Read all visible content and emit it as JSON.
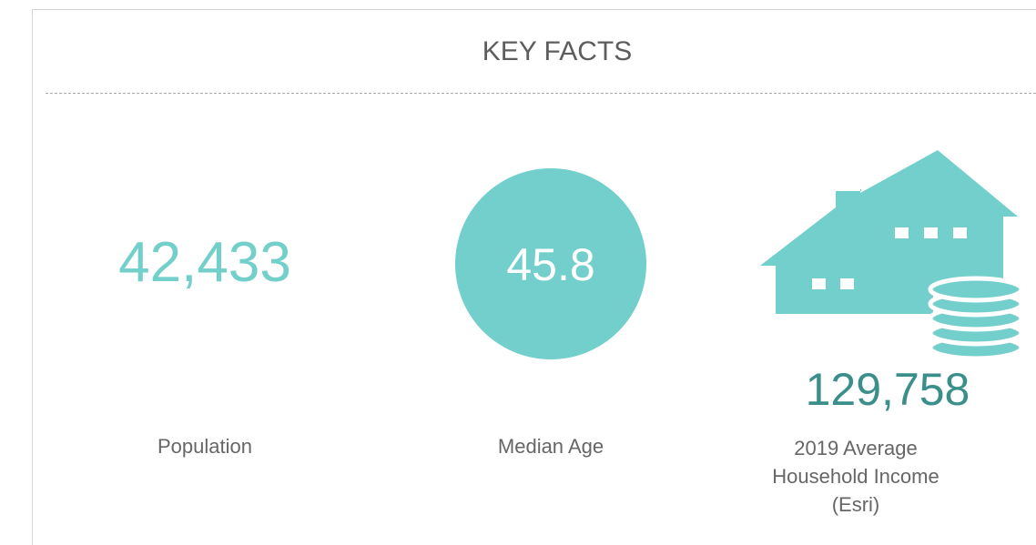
{
  "title": "KEY FACTS",
  "facts": [
    {
      "value": "42,433",
      "label": "Population"
    },
    {
      "value": "45.8",
      "label": "Median Age"
    },
    {
      "value": "129,758",
      "label": "2019 Average Household Income (Esri)"
    }
  ]
}
